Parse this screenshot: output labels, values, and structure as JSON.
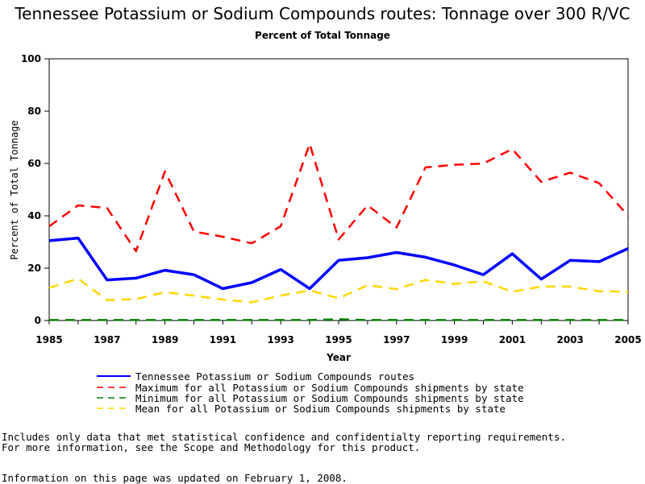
{
  "chart_data": {
    "type": "line",
    "title": "Tennessee Potassium or Sodium Compounds routes: Tonnage over 300 R/VC",
    "subtitle": "Percent of Total Tonnage",
    "xlabel": "Year",
    "ylabel": "Percent of Total Tonnage",
    "ylim": [
      0,
      100
    ],
    "xlim": [
      1985,
      2005
    ],
    "x_ticks": [
      "1985",
      "1987",
      "1989",
      "1991",
      "1993",
      "1995",
      "1997",
      "1999",
      "2001",
      "2003",
      "2005"
    ],
    "y_ticks": [
      "0",
      "20",
      "40",
      "60",
      "80",
      "100"
    ],
    "grid": false,
    "legend_position": "bottom",
    "x": [
      1985,
      1986,
      1987,
      1988,
      1989,
      1990,
      1991,
      1992,
      1993,
      1994,
      1995,
      1996,
      1997,
      1998,
      1999,
      2000,
      2001,
      2002,
      2003,
      2004,
      2005
    ],
    "series": [
      {
        "name": "Tennessee Potassium or Sodium Compounds routes",
        "color": "#0000ff",
        "style": "solid",
        "values": [
          30.5,
          31.5,
          15.5,
          16.2,
          19.2,
          17.5,
          12.2,
          14.5,
          19.5,
          12.2,
          23.0,
          24.0,
          26.0,
          24.2,
          21.2,
          17.5,
          25.5,
          15.8,
          23.0,
          22.5,
          27.5
        ]
      },
      {
        "name": "Maximum for all Potassium or Sodium Compounds shipments by state",
        "color": "#ff0000",
        "style": "dashed",
        "values": [
          36.0,
          44.0,
          43.0,
          26.5,
          57.0,
          34.0,
          32.0,
          29.5,
          36.0,
          67.5,
          31.0,
          44.0,
          35.5,
          58.5,
          59.5,
          60.0,
          65.5,
          53.0,
          56.5,
          52.5,
          40.0
        ]
      },
      {
        "name": "Minimum for all Potassium or Sodium Compounds shipments by state",
        "color": "#008000",
        "style": "dashed",
        "values": [
          0.2,
          0.2,
          0.2,
          0.2,
          0.2,
          0.2,
          0.2,
          0.2,
          0.2,
          0.2,
          0.5,
          0.2,
          0.2,
          0.2,
          0.2,
          0.2,
          0.2,
          0.2,
          0.2,
          0.2,
          0.2
        ]
      },
      {
        "name": "Mean for all Potassium or Sodium Compounds shipments by state",
        "color": "#ffd700",
        "style": "dashed",
        "values": [
          12.5,
          16.0,
          7.8,
          8.2,
          10.8,
          9.5,
          8.0,
          7.0,
          9.5,
          11.5,
          8.5,
          13.5,
          12.0,
          15.5,
          14.0,
          15.0,
          11.0,
          13.0,
          13.0,
          11.2,
          11.0
        ]
      }
    ]
  },
  "notes": {
    "line1": "Includes only data that met statistical confidence and confidentialty reporting requirements.",
    "line2": "For more information, see the Scope and Methodology for this product.",
    "line3": "Information on this page was updated on February 1, 2008."
  }
}
